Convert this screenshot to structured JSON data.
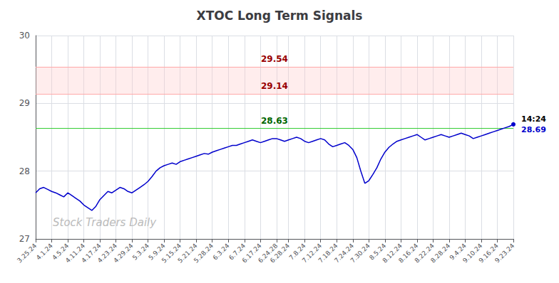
{
  "chart_data": {
    "type": "line",
    "title": "XTOC Long Term Signals",
    "categories": [
      "3.25.24",
      null,
      null,
      null,
      "4.1.24",
      null,
      null,
      null,
      "4.5.24",
      null,
      null,
      null,
      "4.11.24",
      null,
      null,
      null,
      "4.17.24",
      null,
      null,
      null,
      "4.23.24",
      null,
      null,
      null,
      "4.29.24",
      null,
      null,
      null,
      "5.3.24",
      null,
      null,
      null,
      "5.9.24",
      null,
      null,
      null,
      "5.15.24",
      null,
      null,
      null,
      "5.21.24",
      null,
      null,
      null,
      "5.28.24",
      null,
      null,
      null,
      "6.3.24",
      null,
      null,
      null,
      "6.7.24",
      null,
      null,
      null,
      "6.17.24",
      null,
      null,
      null,
      "6.24.28",
      null,
      null,
      "6.28.24",
      null,
      null,
      null,
      "7.8.24",
      null,
      null,
      null,
      "7.12.24",
      null,
      null,
      null,
      "7.18.24",
      null,
      null,
      null,
      "7.24.24",
      null,
      null,
      null,
      "7.30.24",
      null,
      null,
      null,
      "8.5.24",
      null,
      null,
      null,
      "8.12.24",
      null,
      null,
      null,
      "8.16.24",
      null,
      null,
      null,
      "8.22.24",
      null,
      null,
      null,
      "8.28.24",
      null,
      null,
      null,
      "9.4.24",
      null,
      null,
      null,
      "9.10.24",
      null,
      null,
      null,
      "9.16.24",
      null,
      null,
      null,
      "9.23.24"
    ],
    "values": [
      27.68,
      27.74,
      27.76,
      27.73,
      27.7,
      27.68,
      27.65,
      27.62,
      27.68,
      27.64,
      27.6,
      27.56,
      27.5,
      27.46,
      27.42,
      27.48,
      27.58,
      27.64,
      27.7,
      27.68,
      27.72,
      27.76,
      27.74,
      27.7,
      27.68,
      27.72,
      27.76,
      27.8,
      27.85,
      27.92,
      28.0,
      28.05,
      28.08,
      28.1,
      28.12,
      28.1,
      28.14,
      28.16,
      28.18,
      28.2,
      28.22,
      28.24,
      28.26,
      28.25,
      28.28,
      28.3,
      28.32,
      28.34,
      28.36,
      28.38,
      28.38,
      28.4,
      28.42,
      28.44,
      28.46,
      28.44,
      28.42,
      28.44,
      28.46,
      28.48,
      28.48,
      28.46,
      28.44,
      28.46,
      28.48,
      28.5,
      28.48,
      28.44,
      28.42,
      28.44,
      28.46,
      28.48,
      28.46,
      28.4,
      28.36,
      28.38,
      28.4,
      28.42,
      28.38,
      28.32,
      28.2,
      28.0,
      27.82,
      27.86,
      27.95,
      28.05,
      28.18,
      28.28,
      28.35,
      28.4,
      28.44,
      28.46,
      28.48,
      28.5,
      28.52,
      28.54,
      28.5,
      28.46,
      28.48,
      28.5,
      28.52,
      28.54,
      28.52,
      28.5,
      28.52,
      28.54,
      28.56,
      28.54,
      28.52,
      28.48,
      28.5,
      28.52,
      28.54,
      28.56,
      28.58,
      28.6,
      28.62,
      28.64,
      28.66,
      28.69
    ],
    "color": "#0000cc",
    "ylim": [
      27,
      30
    ],
    "yticks": [
      27,
      28,
      29,
      30
    ],
    "grid": true,
    "hlines": [
      {
        "value": 29.54,
        "color": "#ffaaaa",
        "label": "29.54",
        "label_color": "#990000"
      },
      {
        "value": 29.14,
        "color": "#ffaaaa",
        "label": "29.14",
        "label_color": "#990000"
      },
      {
        "value": 28.63,
        "color": "#33cc33",
        "label": "28.63",
        "label_color": "#006600"
      }
    ],
    "band": {
      "from": 29.14,
      "to": 29.54,
      "color": "#ffcccc"
    },
    "end_labels": [
      {
        "text": "14:24",
        "color": "#000000"
      },
      {
        "text": "28.69",
        "color": "#0000cc"
      }
    ],
    "watermark": {
      "text": "Stock Traders Daily",
      "color": "#bbbbbb"
    }
  }
}
